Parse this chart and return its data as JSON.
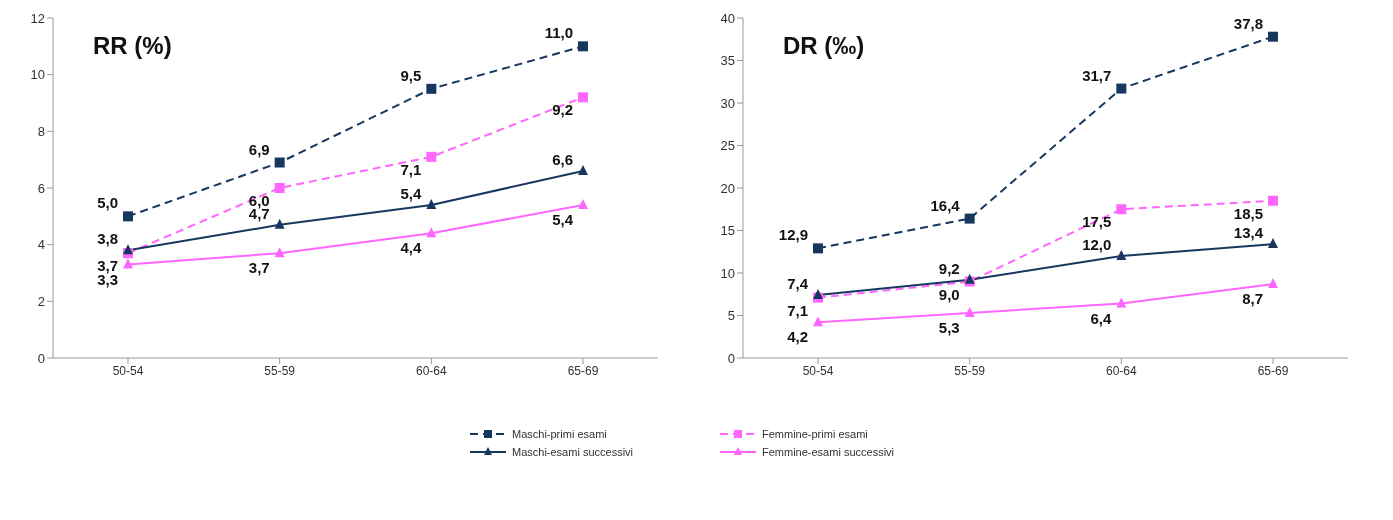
{
  "chart_data": [
    {
      "type": "line",
      "title": "RR (%)",
      "categories": [
        "50-54",
        "55-59",
        "60-64",
        "65-69"
      ],
      "ylim": [
        0,
        12
      ],
      "yticks": [
        0,
        2,
        4,
        6,
        8,
        10,
        12
      ],
      "grid": false,
      "legend": "bottom",
      "series": [
        {
          "name": "Maschi-primi esami",
          "color": "#17375e",
          "marker": "square",
          "line_style": "dashed",
          "values": [
            5.0,
            6.9,
            9.5,
            11.0
          ],
          "value_labels": [
            "5,0",
            "6,9",
            "9,5",
            "11,0"
          ]
        },
        {
          "name": "Femmine-primi esami",
          "color": "#ff66ff",
          "marker": "square",
          "line_style": "dashed",
          "values": [
            3.7,
            6.0,
            7.1,
            9.2
          ],
          "value_labels": [
            "3,7",
            "6,0",
            "7,1",
            "9,2"
          ]
        },
        {
          "name": "Maschi-esami successivi",
          "color": "#17375e",
          "marker": "triangle",
          "line_style": "solid",
          "values": [
            3.8,
            4.7,
            5.4,
            6.6
          ],
          "value_labels": [
            "3,8",
            "4,7",
            "5,4",
            "6,6"
          ]
        },
        {
          "name": "Femmine-esami successivi",
          "color": "#ff66ff",
          "marker": "triangle",
          "line_style": "solid",
          "values": [
            3.3,
            3.7,
            4.4,
            5.4
          ],
          "value_labels": [
            "3,3",
            "3,7",
            "4,4",
            "5,4"
          ]
        }
      ]
    },
    {
      "type": "line",
      "title": "DR (‰)",
      "categories": [
        "50-54",
        "55-59",
        "60-64",
        "65-69"
      ],
      "ylim": [
        0,
        40
      ],
      "yticks": [
        0,
        5,
        10,
        15,
        20,
        25,
        30,
        35,
        40
      ],
      "grid": false,
      "series": [
        {
          "color": "#17375e",
          "marker": "square",
          "line_style": "dashed",
          "values": [
            12.9,
            16.4,
            31.7,
            37.8
          ],
          "value_labels": [
            "12,9",
            "16,4",
            "31,7",
            "37,8"
          ]
        },
        {
          "color": "#ff66ff",
          "marker": "square",
          "line_style": "dashed",
          "values": [
            7.1,
            9.0,
            17.5,
            18.5
          ],
          "value_labels": [
            "7,1",
            "9,0",
            "17,5",
            "18,5"
          ]
        },
        {
          "color": "#17375e",
          "marker": "triangle",
          "line_style": "solid",
          "values": [
            7.4,
            9.2,
            12.0,
            13.4
          ],
          "value_labels": [
            "7,4",
            "9,2",
            "12,0",
            "13,4"
          ]
        },
        {
          "color": "#ff66ff",
          "marker": "triangle",
          "line_style": "solid",
          "values": [
            4.2,
            5.3,
            6.4,
            8.7
          ],
          "value_labels": [
            "4,2",
            "5,3",
            "6,4",
            "8,7"
          ]
        }
      ]
    }
  ]
}
